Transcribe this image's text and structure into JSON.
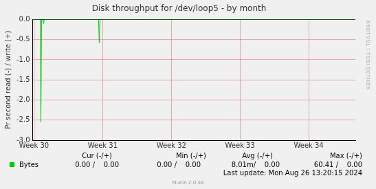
{
  "chart_data": {
    "type": "line",
    "title": "Disk throughput for /dev/loop5 - by month",
    "y_label": "Pr second read (-) / write (+)",
    "x": [
      29.98,
      30.09,
      30.1,
      30.11,
      30.13,
      30.14,
      30.15,
      30.94,
      30.95,
      30.96,
      34.68
    ],
    "series": [
      {
        "name": "Bytes",
        "color": "#00cc00",
        "values": [
          0,
          0,
          -2.55,
          0,
          0,
          -0.1,
          0,
          0,
          -0.58,
          0,
          0
        ]
      }
    ],
    "xlim": [
      29.98,
      34.68
    ],
    "xticks": [
      {
        "value": 30,
        "label": "Week 30"
      },
      {
        "value": 31,
        "label": "Week 31"
      },
      {
        "value": 32,
        "label": "Week 32"
      },
      {
        "value": 33,
        "label": "Week 33"
      },
      {
        "value": 34,
        "label": "Week 34"
      }
    ],
    "ylim": [
      -3,
      0
    ],
    "yticks": [
      {
        "value": -3,
        "label": "-3.0"
      },
      -2.5,
      {
        "value": -2,
        "label": "-2.0"
      },
      -1.5,
      {
        "value": -1,
        "label": "-1.0"
      },
      -0.5,
      {
        "value": 0,
        "label": "0.0"
      }
    ],
    "grid": true,
    "legend_table": {
      "headers": [
        "Cur (-/+)",
        "Min (-/+)",
        "Avg (-/+)",
        "Max (-/+)"
      ],
      "rows": [
        [
          "0.00 /    0.00",
          "0.00 /    0.00",
          "8.01m/    0.00",
          "60.41 /    0.00"
        ]
      ]
    },
    "last_update": "Last update: Mon Aug 26 13:20:15 2024",
    "footer": "Munin 2.0.56",
    "watermark": "RRDTOOL / TOBI OETIKER"
  }
}
